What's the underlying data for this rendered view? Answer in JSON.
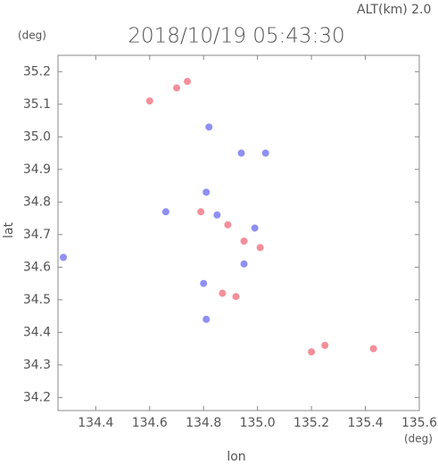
{
  "chart_data": {
    "type": "scatter",
    "title": "2018/10/19 05:43:30",
    "annotation": "ALT(km) 2.0",
    "x_unit": "(deg)",
    "y_unit": "(deg)",
    "xlabel": "lon",
    "ylabel": "lat",
    "xlim": [
      134.26,
      135.6
    ],
    "ylim": [
      34.16,
      35.25
    ],
    "xticks": [
      134.4,
      134.6,
      134.8,
      {
        "value": 135.0,
        "label": "135.0"
      },
      135.2,
      135.4,
      135.6
    ],
    "yticks": [
      34.2,
      34.3,
      34.4,
      34.5,
      34.6,
      34.7,
      34.8,
      34.9,
      {
        "value": 35.0,
        "label": "35.0"
      },
      35.1,
      35.2
    ],
    "series": [
      {
        "color": "#f06a78",
        "x": [
          134.74,
          134.7,
          134.79,
          134.89,
          134.95,
          135.01,
          134.87,
          134.92,
          135.2,
          135.25,
          135.43,
          134.6
        ],
        "y": [
          35.17,
          35.15,
          34.77,
          34.73,
          34.68,
          34.66,
          34.52,
          34.51,
          34.34,
          34.36,
          34.35,
          35.11
        ]
      },
      {
        "color": "#6a6af0",
        "x": [
          134.82,
          134.81,
          134.66,
          134.85,
          134.99,
          134.95,
          134.8,
          134.81,
          134.94,
          135.03,
          134.28
        ],
        "y": [
          35.03,
          34.83,
          34.77,
          34.76,
          34.72,
          34.61,
          34.55,
          34.44,
          34.95,
          34.95,
          34.63
        ]
      }
    ]
  }
}
